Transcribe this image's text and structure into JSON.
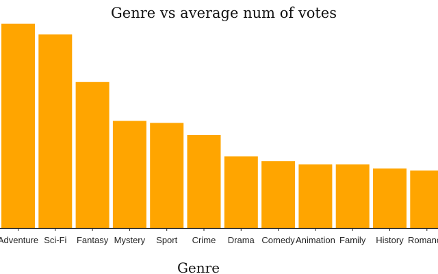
{
  "chart_data": {
    "type": "bar",
    "title": "Genre vs average num of votes",
    "xlabel": "Genre",
    "ylabel": "",
    "categories": [
      "Adventure",
      "Sci-Fi",
      "Fantasy",
      "Mystery",
      "Sport",
      "Crime",
      "Drama",
      "Comedy",
      "Animation",
      "Family",
      "History",
      "Romance"
    ],
    "values": [
      305,
      289,
      218,
      160,
      157,
      139,
      107,
      100,
      95,
      95,
      89,
      86
    ],
    "ylim": [
      0,
      320
    ],
    "grid": false,
    "bar_color": "#FFA500",
    "axis_color": "#222222"
  }
}
